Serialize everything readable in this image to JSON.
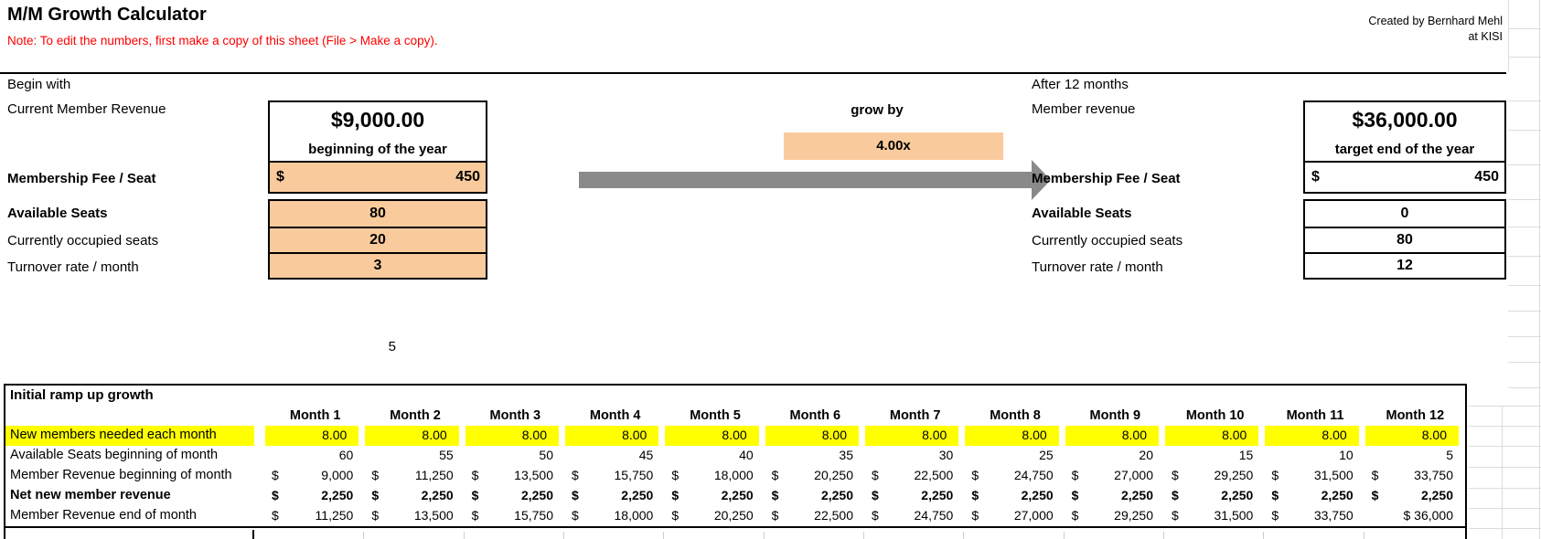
{
  "header": {
    "title": "M/M Growth Calculator",
    "note": "Note: To edit the numbers, first make a copy of this sheet (File > Make a copy).",
    "credit_line1": "Created by Bernhard Mehl",
    "credit_line2": "at KISI"
  },
  "begin": {
    "section_label": "Begin with",
    "revenue_label": "Current Member Revenue",
    "revenue_value": "$9,000.00",
    "revenue_caption": "beginning of the year",
    "fee_label": "Membership Fee / Seat",
    "fee_currency": "$",
    "fee_value": "450",
    "seats_label": "Available Seats",
    "seats_value": "80",
    "occupied_label": "Currently occupied seats",
    "occupied_value": "20",
    "turnover_label": "Turnover rate / month",
    "turnover_value": "3"
  },
  "growth": {
    "grow_by_label": "grow by",
    "multiplier": "4.00x"
  },
  "after": {
    "section_label": "After 12 months",
    "revenue_label": "Member revenue",
    "revenue_value": "$36,000.00",
    "revenue_caption": "target end of the year",
    "fee_label": "Membership Fee / Seat",
    "fee_currency": "$",
    "fee_value": "450",
    "seats_label": "Available Seats",
    "seats_value": "0",
    "occupied_label": "Currently occupied seats",
    "occupied_value": "80",
    "turnover_label": "Turnover rate / month",
    "turnover_value": "12"
  },
  "stray_cell_value": "5",
  "table": {
    "title": "Initial ramp up growth",
    "months": [
      "Month 1",
      "Month 2",
      "Month 3",
      "Month 4",
      "Month 5",
      "Month 6",
      "Month 7",
      "Month 8",
      "Month 9",
      "Month 10",
      "Month 11",
      "Month 12"
    ],
    "rows": [
      {
        "label": "New members needed each month",
        "bold": false,
        "highlight": "yellow",
        "values": [
          "8.00",
          "8.00",
          "8.00",
          "8.00",
          "8.00",
          "8.00",
          "8.00",
          "8.00",
          "8.00",
          "8.00",
          "8.00",
          "8.00"
        ]
      },
      {
        "label": "Available Seats beginning of month",
        "bold": false,
        "values": [
          "60",
          "55",
          "50",
          "45",
          "40",
          "35",
          "30",
          "25",
          "20",
          "15",
          "10",
          "5"
        ]
      },
      {
        "label": "Member Revenue beginning of month",
        "bold": false,
        "prefix": "$",
        "values": [
          "9,000",
          "11,250",
          "13,500",
          "15,750",
          "18,000",
          "20,250",
          "22,500",
          "24,750",
          "27,000",
          "29,250",
          "31,500",
          "33,750"
        ]
      },
      {
        "label": "Net new member revenue",
        "bold": true,
        "prefix": "$",
        "values": [
          "2,250",
          "2,250",
          "2,250",
          "2,250",
          "2,250",
          "2,250",
          "2,250",
          "2,250",
          "2,250",
          "2,250",
          "2,250",
          "2,250"
        ]
      },
      {
        "label": "Member Revenue end of month",
        "bold": false,
        "prefix": "$",
        "values": [
          "11,250",
          "13,500",
          "15,750",
          "18,000",
          "20,250",
          "22,500",
          "24,750",
          "27,000",
          "29,250",
          "31,500",
          "33,750"
        ],
        "combined_last": "$ 36,000"
      }
    ]
  },
  "colors": {
    "input_cell": "#f9cb9c",
    "highlight_row": "#ffff00",
    "arrow": "#8a8a8a",
    "note_text": "#ff0000"
  }
}
